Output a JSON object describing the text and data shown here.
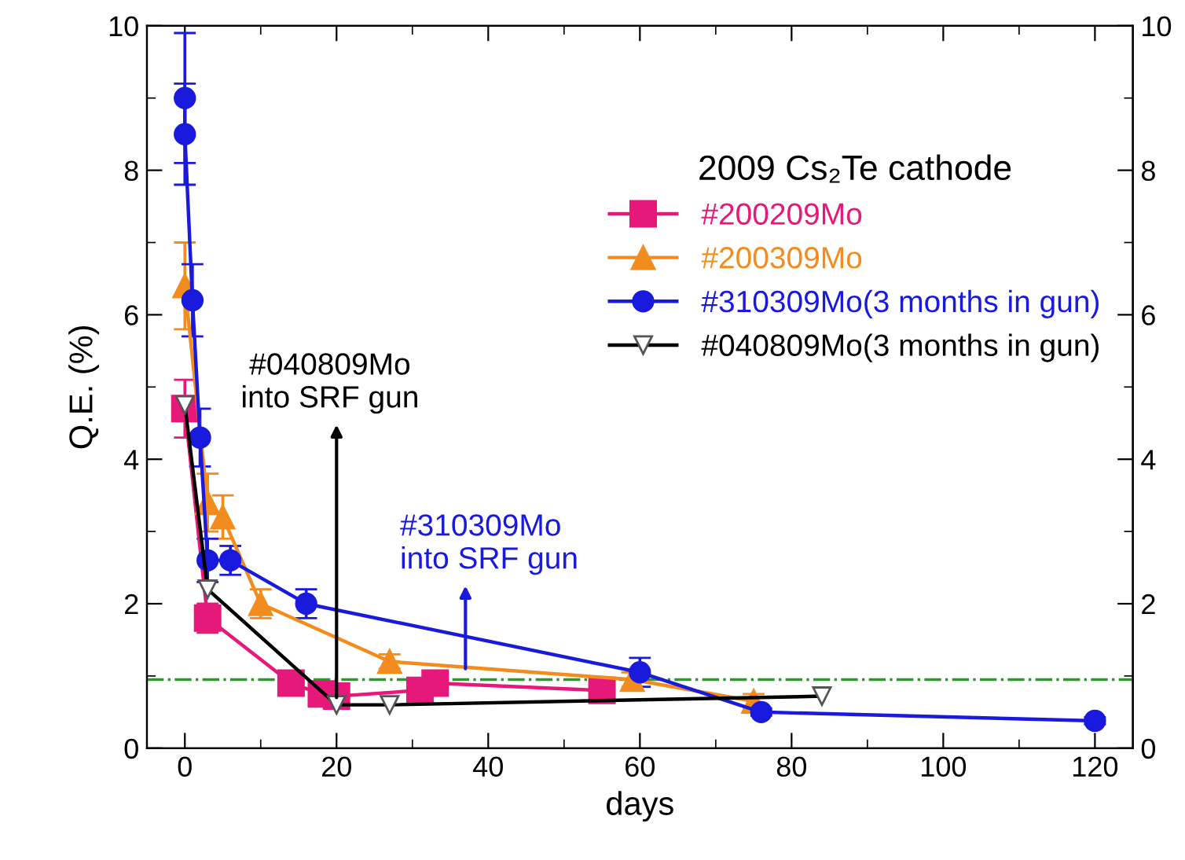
{
  "chart_data": {
    "type": "line",
    "xlabel": "days",
    "ylabel": "Q.E. (%)",
    "legend_title": "2009 Cs₂Te cathode",
    "legend": "top right",
    "grid": false,
    "xlim": [
      -5,
      125
    ],
    "xticks": [
      0,
      20,
      40,
      60,
      80,
      100,
      120
    ],
    "ylim": [
      0,
      10
    ],
    "yticks": [
      0,
      2,
      4,
      6,
      8,
      10
    ],
    "y2lim": [
      0,
      10
    ],
    "y2ticks": [
      0,
      2,
      4,
      6,
      8,
      10
    ],
    "series": [
      {
        "name": "#200209Mo",
        "color": "#e6197a",
        "marker": "square",
        "x": [
          0,
          3,
          14,
          18,
          20,
          31,
          33,
          55
        ],
        "values": [
          4.7,
          1.8,
          0.9,
          0.75,
          0.72,
          0.8,
          0.9,
          0.8
        ],
        "errors": [
          0.4,
          0.2,
          null,
          null,
          null,
          null,
          null,
          null
        ]
      },
      {
        "name": "#200309Mo",
        "color": "#f28c1e",
        "marker": "triangle",
        "x": [
          0,
          3,
          5,
          10,
          27,
          59,
          75
        ],
        "values": [
          6.4,
          3.4,
          3.2,
          2.0,
          1.2,
          0.95,
          0.65
        ],
        "errors": [
          0.6,
          0.4,
          0.3,
          0.2,
          0.1,
          0.1,
          0.1
        ]
      },
      {
        "name": "#310309Mo(3 months in gun)",
        "color": "#1a1adc",
        "marker": "circle",
        "x": [
          0,
          0,
          1,
          2,
          3,
          6,
          16,
          60,
          76,
          120
        ],
        "values": [
          9.0,
          8.5,
          6.2,
          4.3,
          2.6,
          2.6,
          2.0,
          1.05,
          0.5,
          0.38
        ],
        "errors": [
          0.9,
          0.7,
          0.5,
          0.4,
          0.3,
          0.2,
          0.2,
          0.2,
          0.05,
          0.05
        ]
      },
      {
        "name": "#040809Mo(3 months in gun)",
        "color": "#000000",
        "marker": "triangle_down_open",
        "x": [
          0,
          3,
          20,
          27,
          84
        ],
        "values": [
          4.75,
          2.2,
          0.6,
          0.6,
          0.72
        ]
      }
    ],
    "ref_lines": [
      {
        "axis": "y",
        "value": 0.95,
        "color": "#2a9a2a",
        "line_style": "dashdot"
      }
    ],
    "annotations": [
      {
        "text": "#040809Mo\ninto SRF gun",
        "x": 20,
        "y": 0.7
      },
      {
        "text": "#310309Mo\ninto SRF gun",
        "x": 37,
        "y": 1.1
      }
    ]
  }
}
